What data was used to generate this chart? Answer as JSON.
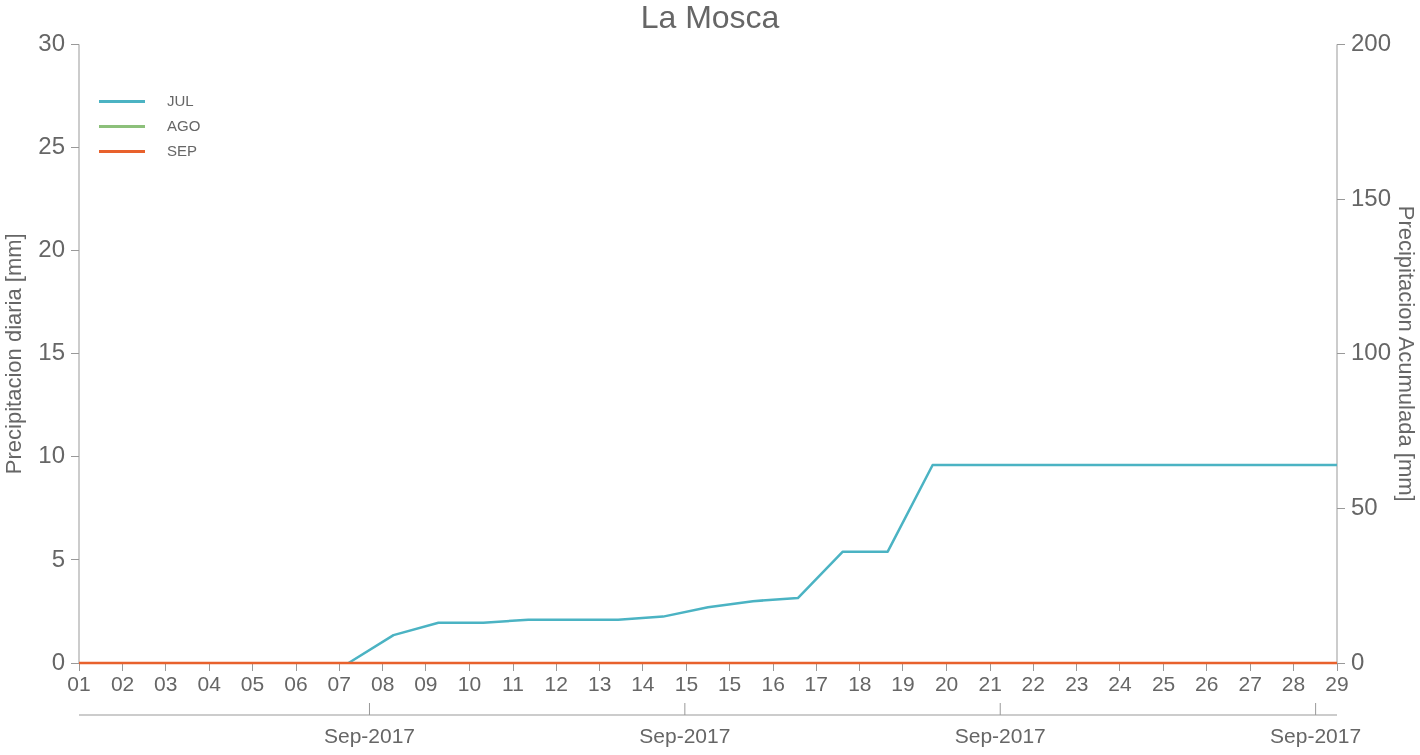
{
  "chart_data": {
    "type": "line",
    "title": "La Mosca",
    "ylabel": "Precipitacion diaria [mm]",
    "y2label": "Precipitacion Acumulada [mm]",
    "annotations": [
      "Sep-2017",
      "Sep-2017",
      "Sep-2017",
      "Sep-2017"
    ],
    "xlim": [
      1,
      29
    ],
    "xticks": [
      {
        "value": 1,
        "label": "01"
      },
      {
        "value": 1.97,
        "label": "02"
      },
      {
        "value": 2.93,
        "label": "03"
      },
      {
        "value": 3.9,
        "label": "04"
      },
      {
        "value": 4.86,
        "label": "05"
      },
      {
        "value": 5.83,
        "label": "06"
      },
      {
        "value": 6.79,
        "label": "07"
      },
      {
        "value": 7.76,
        "label": "08"
      },
      {
        "value": 8.72,
        "label": "09"
      },
      {
        "value": 9.69,
        "label": "10"
      },
      {
        "value": 10.66,
        "label": "11"
      },
      {
        "value": 11.62,
        "label": "12"
      },
      {
        "value": 12.59,
        "label": "13"
      },
      {
        "value": 13.55,
        "label": "14"
      },
      {
        "value": 14.52,
        "label": "15"
      },
      {
        "value": 15.48,
        "label": "15"
      },
      {
        "value": 16.45,
        "label": "16"
      },
      {
        "value": 17.41,
        "label": "17"
      },
      {
        "value": 18.38,
        "label": "18"
      },
      {
        "value": 19.34,
        "label": "19"
      },
      {
        "value": 20.31,
        "label": "20"
      },
      {
        "value": 21.28,
        "label": "21"
      },
      {
        "value": 22.24,
        "label": "22"
      },
      {
        "value": 23.21,
        "label": "23"
      },
      {
        "value": 24.17,
        "label": "24"
      },
      {
        "value": 25.14,
        "label": "25"
      },
      {
        "value": 26.1,
        "label": "26"
      },
      {
        "value": 27.07,
        "label": "27"
      },
      {
        "value": 28.03,
        "label": "28"
      },
      {
        "value": 29,
        "label": "29"
      }
    ],
    "ylim": [
      0,
      30
    ],
    "yticks": [
      0,
      5,
      10,
      15,
      20,
      25,
      30
    ],
    "y2lim": [
      0,
      200
    ],
    "y2ticks": [
      0,
      50,
      100,
      150,
      200
    ],
    "grid": false,
    "legend": "top left",
    "marker": "none",
    "line_style": "solid",
    "series": [
      {
        "name": "JUL",
        "color": "#4bb3c3",
        "axis": "y2",
        "x": [
          7,
          8,
          9,
          10,
          11,
          12,
          13,
          14,
          15,
          16,
          17,
          18,
          19,
          20,
          29
        ],
        "values": [
          0,
          9,
          13,
          13,
          14,
          14,
          14,
          15,
          18,
          20,
          21,
          36,
          36,
          64,
          64
        ]
      },
      {
        "name": "AGO",
        "color": "#8cc07a",
        "axis": "y2"
      },
      {
        "name": "SEP",
        "color": "#e8612c",
        "axis": "y2",
        "x": [
          1,
          29
        ],
        "values": [
          0,
          0
        ]
      }
    ]
  }
}
